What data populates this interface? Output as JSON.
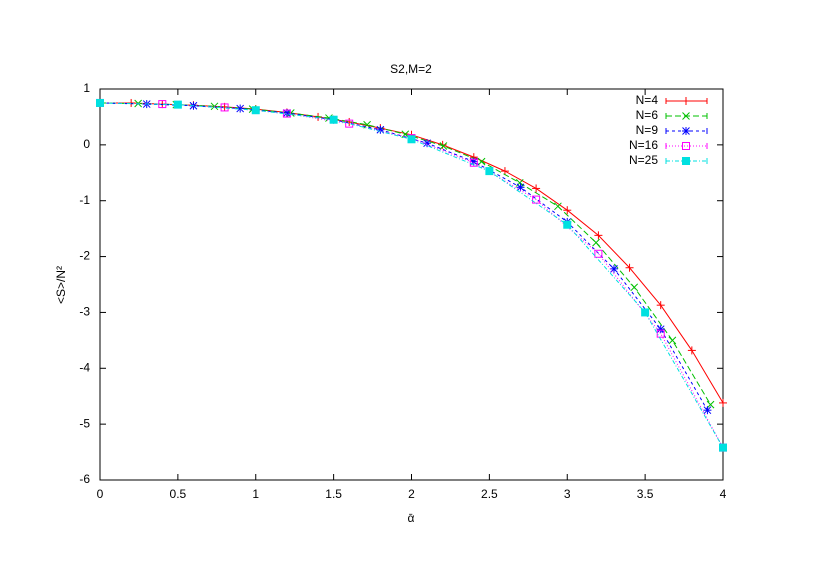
{
  "chart_data": {
    "type": "line",
    "title": "S2,M=2",
    "x_label": "ᾱ",
    "y_label": "<S>/N²",
    "xlim": [
      0,
      4
    ],
    "ylim": [
      -6,
      1
    ],
    "xticks": [
      0,
      0.5,
      1,
      1.5,
      2,
      2.5,
      3,
      3.5,
      4
    ],
    "yticks": [
      -6,
      -5,
      -4,
      -3,
      -2,
      -1,
      0,
      1
    ],
    "legend": "top-right",
    "series": [
      {
        "name": "N=4",
        "color": "#ff0000",
        "marker": "plus",
        "dash": "none",
        "x": [
          0,
          0.2,
          0.4,
          0.6,
          0.8,
          1.0,
          1.2,
          1.4,
          1.6,
          1.8,
          2.0,
          2.2,
          2.4,
          2.6,
          2.8,
          3.0,
          3.2,
          3.4,
          3.6,
          3.8,
          4.0
        ],
        "values": [
          0.75,
          0.75,
          0.73,
          0.71,
          0.68,
          0.64,
          0.58,
          0.5,
          0.41,
          0.3,
          0.18,
          0.0,
          -0.22,
          -0.47,
          -0.78,
          -1.17,
          -1.62,
          -2.2,
          -2.87,
          -3.68,
          -4.62
        ]
      },
      {
        "name": "N=6",
        "color": "#00c000",
        "marker": "cross",
        "dash": "6,3",
        "x": [
          0,
          0.245,
          0.49,
          0.735,
          0.98,
          1.225,
          1.47,
          1.715,
          1.96,
          2.205,
          2.45,
          2.695,
          2.94,
          3.185,
          3.43,
          3.675,
          3.92
        ],
        "values": [
          0.75,
          0.74,
          0.72,
          0.69,
          0.64,
          0.57,
          0.48,
          0.36,
          0.19,
          -0.02,
          -0.3,
          -0.68,
          -1.1,
          -1.75,
          -2.55,
          -3.5,
          -4.65
        ]
      },
      {
        "name": "N=9",
        "color": "#0000ff",
        "marker": "star",
        "dash": "3,3",
        "x": [
          0,
          0.3,
          0.6,
          0.9,
          1.2,
          1.5,
          1.8,
          2.1,
          2.4,
          2.7,
          3.0,
          3.3,
          3.6,
          3.9
        ],
        "values": [
          0.75,
          0.73,
          0.7,
          0.65,
          0.57,
          0.45,
          0.27,
          0.03,
          -0.3,
          -0.76,
          -1.38,
          -2.22,
          -3.3,
          -4.75
        ]
      },
      {
        "name": "N=16",
        "color": "#ff00ff",
        "marker": "square",
        "dash": "1,2",
        "x": [
          0,
          0.4,
          0.8,
          1.2,
          1.6,
          2.0,
          2.4,
          2.8,
          3.2,
          3.6,
          4.0
        ],
        "values": [
          0.75,
          0.73,
          0.67,
          0.56,
          0.38,
          0.12,
          -0.32,
          -0.98,
          -1.95,
          -3.38,
          -5.42
        ]
      },
      {
        "name": "N=25",
        "color": "#00e0e0",
        "marker": "filled-square",
        "dash": "4,2,1,2",
        "x": [
          0,
          0.5,
          1.0,
          1.5,
          2.0,
          2.5,
          3.0,
          3.5,
          4.0
        ],
        "values": [
          0.75,
          0.72,
          0.62,
          0.45,
          0.1,
          -0.47,
          -1.43,
          -3.0,
          -5.42
        ]
      }
    ]
  }
}
